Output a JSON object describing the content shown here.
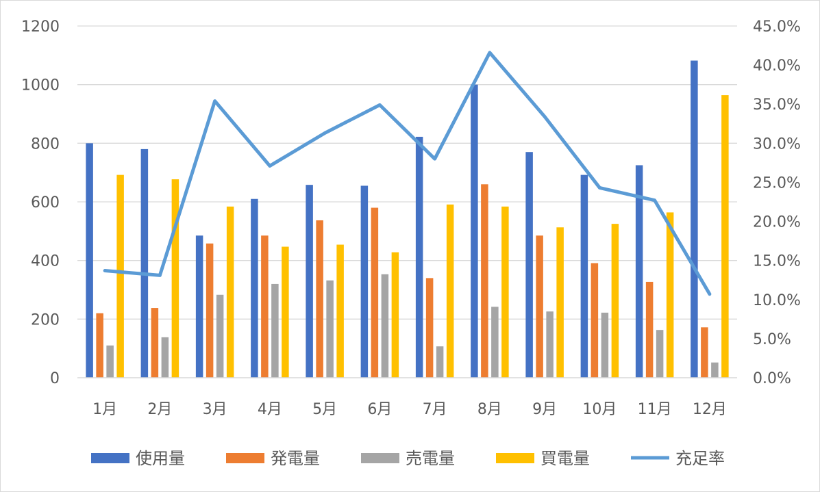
{
  "chart_data": {
    "type": "bar",
    "categories": [
      "1月",
      "2月",
      "3月",
      "4月",
      "5月",
      "6月",
      "7月",
      "8月",
      "9月",
      "10月",
      "11月",
      "12月"
    ],
    "series": [
      {
        "name": "使用量",
        "type": "bar",
        "axis": "left",
        "color": "#4472c4",
        "values": [
          800,
          780,
          485,
          610,
          658,
          655,
          822,
          1000,
          770,
          692,
          725,
          1082
        ]
      },
      {
        "name": "発電量",
        "type": "bar",
        "axis": "left",
        "color": "#ed7d31",
        "values": [
          220,
          238,
          458,
          485,
          537,
          580,
          340,
          660,
          485,
          391,
          327,
          172
        ]
      },
      {
        "name": "売電量",
        "type": "bar",
        "axis": "left",
        "color": "#a5a5a5",
        "values": [
          110,
          138,
          283,
          320,
          332,
          353,
          107,
          242,
          226,
          222,
          163,
          52
        ]
      },
      {
        "name": "買電量",
        "type": "bar",
        "axis": "left",
        "color": "#ffc000",
        "values": [
          692,
          677,
          584,
          447,
          454,
          428,
          591,
          584,
          513,
          525,
          564,
          964
        ]
      },
      {
        "name": "充足率",
        "type": "line",
        "axis": "right",
        "color": "#5b9bd5",
        "values": [
          13.7,
          13.1,
          35.4,
          27.1,
          31.3,
          34.9,
          28.0,
          41.6,
          33.4,
          24.3,
          22.7,
          10.7
        ]
      }
    ],
    "y_axis": {
      "min": 0,
      "max": 1200,
      "step": 200,
      "ticks": [
        "0",
        "200",
        "400",
        "600",
        "800",
        "1000",
        "1200"
      ]
    },
    "y2_axis": {
      "min": 0,
      "max": 45,
      "step": 5,
      "unit": "percent",
      "ticks": [
        "0.0%",
        "5.0%",
        "10.0%",
        "15.0%",
        "20.0%",
        "25.0%",
        "30.0%",
        "35.0%",
        "40.0%",
        "45.0%"
      ]
    },
    "grid": true,
    "legend": "bottom"
  }
}
